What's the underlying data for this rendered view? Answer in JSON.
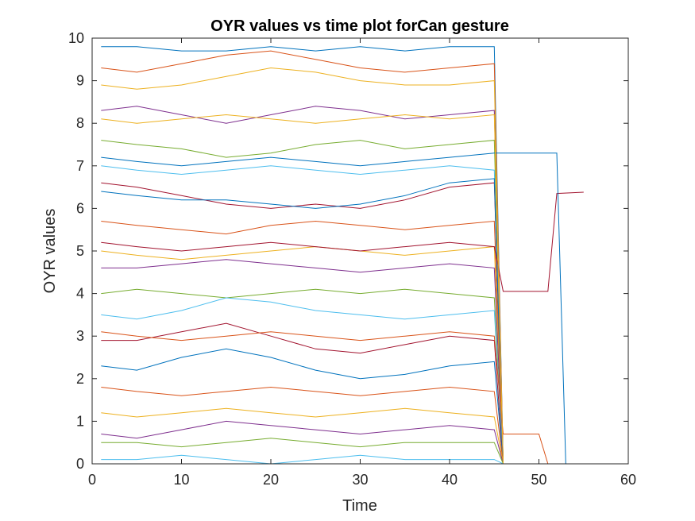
{
  "chart_data": {
    "type": "line",
    "title": "OYR values vs time plot forCan gesture",
    "xlabel": "Time",
    "ylabel": "OYR values",
    "xlim": [
      0,
      60
    ],
    "ylim": [
      0,
      10
    ],
    "xticks": [
      0,
      10,
      20,
      30,
      40,
      50,
      60
    ],
    "yticks": [
      0,
      1,
      2,
      3,
      4,
      5,
      6,
      7,
      8,
      9,
      10
    ],
    "grid": false,
    "legend": "none",
    "palette": [
      "#0072BD",
      "#D95319",
      "#EDB120",
      "#7E2F8E",
      "#77AC30",
      "#4DBEEE",
      "#A2142F"
    ],
    "series": [
      {
        "x": [
          1,
          5,
          10,
          15,
          20,
          25,
          30,
          35,
          40,
          45,
          46,
          47
        ],
        "y": [
          9.8,
          9.8,
          9.7,
          9.7,
          9.8,
          9.7,
          9.8,
          9.7,
          9.8,
          9.8,
          0,
          0
        ]
      },
      {
        "x": [
          1,
          5,
          10,
          15,
          20,
          25,
          30,
          35,
          40,
          45,
          46,
          47
        ],
        "y": [
          9.3,
          9.2,
          9.4,
          9.6,
          9.7,
          9.5,
          9.3,
          9.2,
          9.3,
          9.4,
          0,
          0
        ]
      },
      {
        "x": [
          1,
          5,
          10,
          15,
          20,
          25,
          30,
          35,
          40,
          45,
          46,
          47
        ],
        "y": [
          8.9,
          8.8,
          8.9,
          9.1,
          9.3,
          9.2,
          9.0,
          8.9,
          8.9,
          9.0,
          0,
          0
        ]
      },
      {
        "x": [
          1,
          5,
          10,
          15,
          20,
          25,
          30,
          35,
          40,
          45,
          46,
          47
        ],
        "y": [
          8.3,
          8.4,
          8.2,
          8.0,
          8.2,
          8.4,
          8.3,
          8.1,
          8.2,
          8.3,
          0,
          0
        ]
      },
      {
        "x": [
          1,
          5,
          10,
          15,
          20,
          25,
          30,
          35,
          40,
          45,
          46,
          47
        ],
        "y": [
          7.6,
          7.5,
          7.4,
          7.2,
          7.3,
          7.5,
          7.6,
          7.4,
          7.5,
          7.6,
          0,
          0
        ]
      },
      {
        "x": [
          1,
          5,
          10,
          15,
          20,
          25,
          30,
          35,
          40,
          45,
          46,
          47
        ],
        "y": [
          7.0,
          6.9,
          6.8,
          6.9,
          7.0,
          6.9,
          6.8,
          6.9,
          7.0,
          6.9,
          0,
          0
        ]
      },
      {
        "x": [
          1,
          5,
          10,
          15,
          20,
          25,
          30,
          35,
          40,
          45,
          46,
          47
        ],
        "y": [
          6.6,
          6.5,
          6.3,
          6.1,
          6.0,
          6.1,
          6.0,
          6.2,
          6.5,
          6.6,
          0,
          0
        ]
      },
      {
        "x": [
          1,
          5,
          10,
          15,
          20,
          25,
          30,
          35,
          40,
          45,
          46,
          47
        ],
        "y": [
          6.4,
          6.3,
          6.2,
          6.2,
          6.1,
          6.0,
          6.1,
          6.3,
          6.6,
          6.7,
          0,
          0
        ]
      },
      {
        "x": [
          1,
          5,
          10,
          15,
          20,
          25,
          30,
          35,
          40,
          45,
          46,
          47
        ],
        "y": [
          5.7,
          5.6,
          5.5,
          5.4,
          5.6,
          5.7,
          5.6,
          5.5,
          5.6,
          5.7,
          0,
          0
        ]
      },
      {
        "x": [
          1,
          5,
          10,
          15,
          20,
          25,
          30,
          35,
          40,
          45,
          46,
          47
        ],
        "y": [
          5.0,
          4.9,
          4.8,
          4.9,
          5.0,
          5.1,
          5.0,
          4.9,
          5.0,
          5.1,
          0,
          0
        ]
      },
      {
        "x": [
          1,
          5,
          10,
          15,
          20,
          25,
          30,
          35,
          40,
          45,
          46,
          47
        ],
        "y": [
          4.6,
          4.6,
          4.7,
          4.8,
          4.7,
          4.6,
          4.5,
          4.6,
          4.7,
          4.6,
          0,
          0
        ]
      },
      {
        "x": [
          1,
          5,
          10,
          15,
          20,
          25,
          30,
          35,
          40,
          45,
          46,
          47
        ],
        "y": [
          4.0,
          4.1,
          4.0,
          3.9,
          4.0,
          4.1,
          4.0,
          4.1,
          4.0,
          3.9,
          0,
          0
        ]
      },
      {
        "x": [
          1,
          5,
          10,
          15,
          20,
          25,
          30,
          35,
          40,
          45,
          46,
          47
        ],
        "y": [
          3.5,
          3.4,
          3.6,
          3.9,
          3.8,
          3.6,
          3.5,
          3.4,
          3.5,
          3.6,
          0,
          0
        ]
      },
      {
        "x": [
          1,
          5,
          10,
          15,
          20,
          25,
          30,
          35,
          40,
          45,
          46,
          47
        ],
        "y": [
          2.9,
          2.9,
          3.1,
          3.3,
          3.0,
          2.7,
          2.6,
          2.8,
          3.0,
          2.9,
          0,
          0
        ]
      },
      {
        "x": [
          1,
          5,
          10,
          15,
          20,
          25,
          30,
          35,
          40,
          45,
          46,
          47
        ],
        "y": [
          2.3,
          2.2,
          2.5,
          2.7,
          2.5,
          2.2,
          2.0,
          2.1,
          2.3,
          2.4,
          0,
          0
        ]
      },
      {
        "x": [
          1,
          5,
          10,
          15,
          20,
          25,
          30,
          35,
          40,
          45,
          46,
          47
        ],
        "y": [
          1.8,
          1.7,
          1.6,
          1.7,
          1.8,
          1.7,
          1.6,
          1.7,
          1.8,
          1.7,
          0,
          0
        ]
      },
      {
        "x": [
          1,
          5,
          10,
          15,
          20,
          25,
          30,
          35,
          40,
          45,
          46,
          47
        ],
        "y": [
          1.2,
          1.1,
          1.2,
          1.3,
          1.2,
          1.1,
          1.2,
          1.3,
          1.2,
          1.1,
          0,
          0
        ]
      },
      {
        "x": [
          1,
          5,
          10,
          15,
          20,
          25,
          30,
          35,
          40,
          45,
          46,
          47
        ],
        "y": [
          0.7,
          0.6,
          0.8,
          1.0,
          0.9,
          0.8,
          0.7,
          0.8,
          0.9,
          0.8,
          0,
          0
        ]
      },
      {
        "x": [
          1,
          5,
          10,
          15,
          20,
          25,
          30,
          35,
          40,
          45,
          46,
          47
        ],
        "y": [
          0.5,
          0.5,
          0.4,
          0.5,
          0.6,
          0.5,
          0.4,
          0.5,
          0.5,
          0.5,
          0,
          0
        ]
      },
      {
        "x": [
          1,
          5,
          10,
          15,
          20,
          25,
          30,
          35,
          40,
          45,
          46,
          47
        ],
        "y": [
          0.1,
          0.1,
          0.2,
          0.1,
          0.0,
          0.1,
          0.2,
          0.1,
          0.1,
          0.1,
          0,
          0
        ]
      },
      {
        "x": [
          1,
          5,
          10,
          15,
          20,
          25,
          30,
          35,
          40,
          45,
          46,
          47,
          51,
          52,
          55
        ],
        "y": [
          5.2,
          5.1,
          5.0,
          5.1,
          5.2,
          5.1,
          5.0,
          5.1,
          5.2,
          5.1,
          4.05,
          4.05,
          4.05,
          6.35,
          6.38
        ]
      },
      {
        "x": [
          1,
          5,
          10,
          15,
          20,
          25,
          30,
          35,
          40,
          45,
          46,
          47,
          52,
          53,
          55
        ],
        "y": [
          7.2,
          7.1,
          7.0,
          7.1,
          7.2,
          7.1,
          7.0,
          7.1,
          7.2,
          7.3,
          7.3,
          7.3,
          7.3,
          0,
          0
        ]
      },
      {
        "x": [
          1,
          5,
          10,
          15,
          20,
          25,
          30,
          35,
          40,
          45,
          46,
          47,
          50,
          51,
          55
        ],
        "y": [
          3.1,
          3.0,
          2.9,
          3.0,
          3.1,
          3.0,
          2.9,
          3.0,
          3.1,
          3.0,
          0.7,
          0.7,
          0.7,
          0,
          0
        ]
      },
      {
        "x": [
          1,
          5,
          10,
          15,
          20,
          25,
          30,
          35,
          40,
          45,
          46,
          55
        ],
        "y": [
          8.1,
          8.0,
          8.1,
          8.2,
          8.1,
          8.0,
          8.1,
          8.2,
          8.1,
          8.2,
          0,
          0
        ]
      }
    ]
  }
}
